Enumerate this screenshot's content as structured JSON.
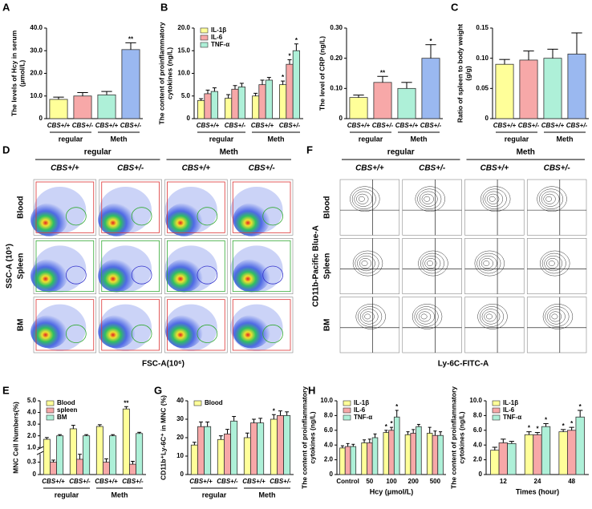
{
  "chart_data": [
    {
      "type": "bar",
      "panel": "A",
      "ylabel": [
        "The levels of Hcy in serum",
        "(μmol/L)"
      ],
      "categories": [
        "CBS+/+",
        "CBS+/-",
        "CBS+/+",
        "CBS+/-"
      ],
      "groups": [
        "regular",
        "Meth"
      ],
      "values": [
        8.5,
        10,
        10.5,
        30.5
      ],
      "errors": [
        1,
        1.5,
        1.5,
        3
      ],
      "sig": [
        null,
        null,
        null,
        "**"
      ],
      "colors": [
        "#ffff99",
        "#f7a8a8",
        "#aef0d8",
        "#9ab8f0"
      ],
      "ylim": [
        0,
        40
      ],
      "yticks": [
        0,
        {
          "value": 10,
          "label": "10.0"
        },
        {
          "value": 20,
          "label": "20.0"
        },
        {
          "value": 30,
          "label": "30.0"
        },
        {
          "value": 40,
          "label": "40.0"
        }
      ]
    },
    {
      "type": "bar",
      "panel": "B",
      "ylabel": [
        "The content of proinflammatory",
        "cytokines (ng/L)"
      ],
      "categories": [
        "CBS+/+",
        "CBS+/-",
        "CBS+/+",
        "CBS+/-"
      ],
      "groups": [
        "regular",
        "Meth"
      ],
      "series": [
        {
          "name": "IL-1β",
          "color": "#ffff99",
          "values": [
            4,
            4.5,
            5,
            7.5
          ],
          "errors": [
            0.4,
            0.8,
            0.6,
            0.8
          ],
          "sig": [
            null,
            null,
            null,
            "*"
          ]
        },
        {
          "name": "IL-6",
          "color": "#f7a8a8",
          "values": [
            5.5,
            6.5,
            7.5,
            12
          ],
          "errors": [
            0.8,
            0.8,
            1,
            1
          ],
          "sig": [
            null,
            null,
            null,
            "*"
          ]
        },
        {
          "name": "TNF-α",
          "color": "#aef0d8",
          "values": [
            6,
            7,
            8.5,
            15
          ],
          "errors": [
            0.8,
            0.8,
            0.6,
            1.5
          ],
          "sig": [
            null,
            null,
            null,
            "*"
          ]
        }
      ],
      "ylim": [
        0,
        20
      ],
      "yticks": [
        0,
        {
          "value": 5,
          "label": "5.0"
        },
        {
          "value": 10,
          "label": "10.0"
        },
        {
          "value": 15,
          "label": "15.0"
        },
        {
          "value": 20,
          "label": "20.0"
        }
      ]
    },
    {
      "type": "bar",
      "ylabel": [
        "The level of CRP (ng/L)"
      ],
      "categories": [
        "CBS+/+",
        "CBS+/-",
        "CBS+/+",
        "CBS+/-"
      ],
      "groups": [
        "regular",
        "Meth"
      ],
      "values": [
        0.07,
        0.12,
        0.1,
        0.2
      ],
      "errors": [
        0.008,
        0.02,
        0.02,
        0.045
      ],
      "sig": [
        null,
        "**",
        null,
        "*"
      ],
      "colors": [
        "#ffff99",
        "#f7a8a8",
        "#aef0d8",
        "#9ab8f0"
      ],
      "ylim": [
        0,
        0.3
      ],
      "yticks": [
        0,
        {
          "value": 0.1,
          "label": "0.10"
        },
        {
          "value": 0.2,
          "label": "0.20"
        },
        {
          "value": 0.3,
          "label": "0.30"
        }
      ]
    },
    {
      "type": "bar",
      "panel": "C",
      "ylabel": [
        "Ratio of spleen to body weight",
        "(g/g)"
      ],
      "categories": [
        "CBS+/+",
        "CBS+/-",
        "CBS+/+",
        "CBS+/-"
      ],
      "groups": [
        "regular",
        "Meth"
      ],
      "values": [
        0.09,
        0.097,
        0.1,
        0.107
      ],
      "errors": [
        0.008,
        0.015,
        0.015,
        0.035
      ],
      "colors": [
        "#ffff99",
        "#f7a8a8",
        "#aef0d8",
        "#9ab8f0"
      ],
      "ylim": [
        0,
        0.15
      ],
      "yticks": [
        0,
        0.05,
        {
          "value": 0.1,
          "label": "0.10"
        },
        0.15
      ]
    },
    {
      "type": "cytometry",
      "panel": "D",
      "style": "density",
      "groups": [
        "regular",
        "Meth"
      ],
      "columns": [
        "CBS+/+",
        "CBS+/-",
        "CBS+/+",
        "CBS+/-"
      ],
      "rows": [
        "Blood",
        "Spleen",
        "BM"
      ],
      "xlabel": "FSC-A(10⁶)",
      "ylabel": "SSC-A (10⁵)"
    },
    {
      "type": "cytometry",
      "panel": "F",
      "style": "contour",
      "groups": [
        "regular",
        "Meth"
      ],
      "columns": [
        "CBS+/+",
        "CBS+/-",
        "CBS+/+",
        "CBS+/-"
      ],
      "rows": [
        "Blood",
        "Spleen",
        "BM"
      ],
      "xlabel": "Ly-6C-FITC-A",
      "ylabel": "CD11b-Pacific Blue-A"
    },
    {
      "type": "bar",
      "panel": "E",
      "ylabel": [
        "MNC Cell Numbers(%)"
      ],
      "categories": [
        "CBS+/+",
        "CBS+/-",
        "CBS+/+",
        "CBS+/-"
      ],
      "groups": [
        "regular",
        "Meth"
      ],
      "series": [
        {
          "name": "Blood",
          "color": "#ffff99",
          "values": [
            1.7,
            2.6,
            2.8,
            4.3
          ],
          "errors": [
            0.15,
            0.3,
            0.15,
            0.2
          ],
          "sig": [
            null,
            null,
            null,
            "**"
          ]
        },
        {
          "name": "spleen",
          "color": "#f7a8a8",
          "values": [
            0.3,
            0.37,
            0.3,
            0.25
          ],
          "errors": [
            0.05,
            0.12,
            0.08,
            0.07
          ]
        },
        {
          "name": "BM",
          "color": "#aef0d8",
          "values": [
            2,
            2,
            2,
            2.2
          ],
          "errors": [
            0.1,
            0.1,
            0.1,
            0.1
          ]
        }
      ],
      "ylim": [
        0,
        5
      ],
      "ybreak": [
        0.5,
        1
      ],
      "yticks": [
        0,
        0.3,
        {
          "value": 1,
          "label": "1.0"
        },
        {
          "value": 2,
          "label": "2.0"
        },
        {
          "value": 3,
          "label": "3.0"
        },
        {
          "value": 4,
          "label": "4.0"
        },
        {
          "value": 5,
          "label": "5.0"
        }
      ]
    },
    {
      "type": "bar",
      "panel": "G",
      "ylabel": [
        "CD11b⁺Ly-6C⁺ in MNC (%)"
      ],
      "categories": [
        "CBS+/+",
        "CBS+/-",
        "CBS+/+",
        "CBS+/-"
      ],
      "groups": [
        "regular",
        "Meth"
      ],
      "series": [
        {
          "name": "Blood",
          "color": "#ffff99",
          "values": [
            16,
            19,
            20,
            30
          ],
          "errors": [
            1.5,
            2,
            2.5,
            2.5
          ],
          "sig": [
            null,
            null,
            null,
            "*"
          ]
        },
        {
          "color": "#f7a8a8",
          "values": [
            26,
            22,
            28,
            32
          ],
          "errors": [
            2.5,
            2.5,
            2,
            2.5
          ]
        },
        {
          "color": "#aef0d8",
          "values": [
            26,
            29,
            28,
            32
          ],
          "errors": [
            2.5,
            2.5,
            2.5,
            2
          ]
        }
      ],
      "ylim": [
        0,
        40
      ],
      "yticks": [
        0,
        10,
        20,
        30,
        40
      ]
    },
    {
      "type": "bar",
      "panel": "H",
      "ylabel": [
        "The content of proinflammatory",
        "cytokines (ng/L)"
      ],
      "xlabel": "Hcy (μmol/L)",
      "categories": [
        "Control",
        "50",
        "100",
        "200",
        "500"
      ],
      "series": [
        {
          "name": "IL-1β",
          "color": "#ffff99",
          "values": [
            3.6,
            4.3,
            5.7,
            5.4,
            5.6
          ],
          "errors": [
            0.3,
            0.4,
            0.3,
            0.4,
            0.8
          ],
          "sig": [
            null,
            null,
            "*",
            null,
            null
          ]
        },
        {
          "name": "IL-6",
          "color": "#f7a8a8",
          "values": [
            3.8,
            4.3,
            6,
            5.6,
            5.3
          ],
          "errors": [
            0.4,
            0.5,
            0.4,
            0.5,
            0.6
          ],
          "sig": [
            null,
            null,
            "*",
            null,
            null
          ]
        },
        {
          "name": "TNF-α",
          "color": "#aef0d8",
          "values": [
            3.8,
            5,
            7.8,
            6.5,
            5.3
          ],
          "errors": [
            0.3,
            0.5,
            0.9,
            0.3,
            0.5
          ],
          "sig": [
            null,
            null,
            "*",
            null,
            null
          ]
        }
      ],
      "ylim": [
        0,
        10
      ],
      "yticks": [
        0,
        {
          "value": 2,
          "label": "2.0"
        },
        {
          "value": 4,
          "label": "4.0"
        },
        {
          "value": 6,
          "label": "6.0"
        },
        {
          "value": 8,
          "label": "8.0"
        },
        {
          "value": 10,
          "label": "10.0"
        }
      ]
    },
    {
      "type": "bar",
      "ylabel": [
        "The content of proinflammatory",
        "cytokines (ng/L)"
      ],
      "xlabel": "Times (hour)",
      "categories": [
        "12",
        "24",
        "48"
      ],
      "series": [
        {
          "name": "IL-1β",
          "color": "#ffff99",
          "values": [
            3.3,
            5.4,
            5.8
          ],
          "errors": [
            0.4,
            0.4,
            0.3
          ],
          "sig": [
            null,
            "*",
            "*"
          ]
        },
        {
          "name": "IL-6",
          "color": "#f7a8a8",
          "values": [
            4.3,
            5.4,
            6
          ],
          "errors": [
            0.5,
            0.3,
            0.4
          ],
          "sig": [
            null,
            "*",
            "*"
          ]
        },
        {
          "name": "TNF-α",
          "color": "#aef0d8",
          "values": [
            4.2,
            6.5,
            7.8
          ],
          "errors": [
            0.3,
            0.4,
            0.9
          ],
          "sig": [
            null,
            "*",
            "*"
          ]
        }
      ],
      "ylim": [
        0,
        10
      ],
      "yticks": [
        0,
        {
          "value": 2,
          "label": "2.0"
        },
        {
          "value": 4,
          "label": "4.0"
        },
        {
          "value": 6,
          "label": "6.0"
        },
        {
          "value": 8,
          "label": "8.0"
        },
        {
          "value": 10,
          "label": "10.0"
        }
      ]
    }
  ]
}
